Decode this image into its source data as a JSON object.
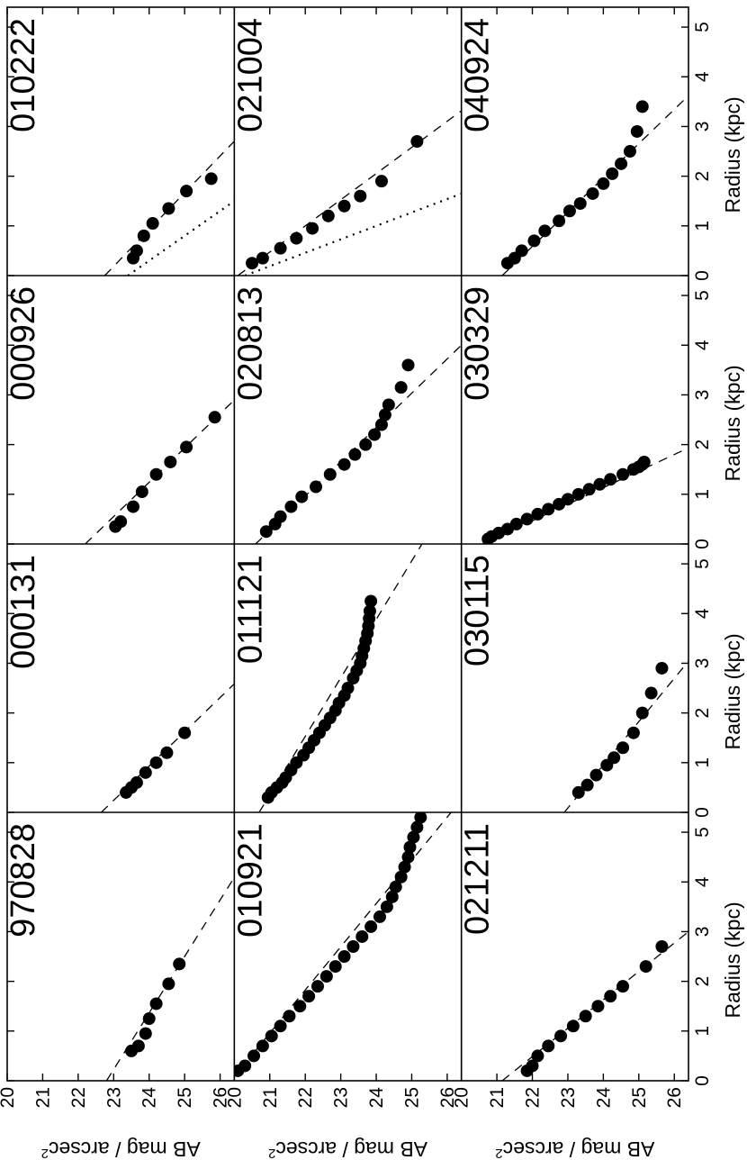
{
  "chart_data": {
    "type": "scatter",
    "rotated_degrees": -90,
    "layout": {
      "rows": 3,
      "cols": 4
    },
    "xlabel": "Radius  (kpc)",
    "ylabel": "AB mag / arcsec",
    "ylabel_superscript": "2",
    "xlim": [
      0,
      5.4
    ],
    "ylim": [
      20,
      26.4
    ],
    "x_ticks": [
      0,
      1,
      2,
      3,
      4,
      5
    ],
    "x_ticklabels": [
      "0",
      "1",
      "2",
      "3",
      "4",
      "5"
    ],
    "y_ticks": [
      20,
      21,
      22,
      23,
      24,
      25,
      26
    ],
    "y_ticklabels": [
      "20",
      "21",
      "22",
      "23",
      "24",
      "25",
      "26"
    ],
    "panels": [
      {
        "id": "970828",
        "row": 0,
        "col": 0,
        "points": [
          [
            0.6,
            23.5
          ],
          [
            0.7,
            23.7
          ],
          [
            0.95,
            23.9
          ],
          [
            1.25,
            24.0
          ],
          [
            1.55,
            24.2
          ],
          [
            1.95,
            24.55
          ],
          [
            2.35,
            24.85
          ]
        ],
        "fit": [
          22.8,
          0.88
        ]
      },
      {
        "id": "000131",
        "row": 0,
        "col": 1,
        "points": [
          [
            0.4,
            23.35
          ],
          [
            0.5,
            23.5
          ],
          [
            0.6,
            23.65
          ],
          [
            0.8,
            23.9
          ],
          [
            1.0,
            24.2
          ],
          [
            1.2,
            24.5
          ],
          [
            1.6,
            25.0
          ]
        ],
        "fit": [
          22.65,
          1.45
        ]
      },
      {
        "id": "000926",
        "row": 0,
        "col": 2,
        "points": [
          [
            0.35,
            23.05
          ],
          [
            0.45,
            23.2
          ],
          [
            0.75,
            23.55
          ],
          [
            1.05,
            23.8
          ],
          [
            1.4,
            24.2
          ],
          [
            1.65,
            24.6
          ],
          [
            1.95,
            25.05
          ],
          [
            2.55,
            25.85
          ]
        ],
        "fit": [
          22.2,
          1.45
        ]
      },
      {
        "id": "010222",
        "row": 0,
        "col": 3,
        "points": [
          [
            0.35,
            23.55
          ],
          [
            0.5,
            23.65
          ],
          [
            0.8,
            23.85
          ],
          [
            1.05,
            24.1
          ],
          [
            1.35,
            24.55
          ],
          [
            1.7,
            25.05
          ],
          [
            1.95,
            25.75
          ]
        ],
        "fit": [
          22.75,
          1.35
        ],
        "dotted": [
          23.4,
          2.0
        ]
      },
      {
        "id": "010921",
        "row": 1,
        "col": 0,
        "points": [
          [
            0.2,
            20.1
          ],
          [
            0.3,
            20.3
          ],
          [
            0.5,
            20.55
          ],
          [
            0.7,
            20.8
          ],
          [
            0.9,
            21.05
          ],
          [
            1.1,
            21.3
          ],
          [
            1.3,
            21.55
          ],
          [
            1.5,
            21.85
          ],
          [
            1.7,
            22.1
          ],
          [
            1.9,
            22.35
          ],
          [
            2.1,
            22.6
          ],
          [
            2.3,
            22.85
          ],
          [
            2.5,
            23.1
          ],
          [
            2.7,
            23.35
          ],
          [
            2.9,
            23.6
          ],
          [
            3.1,
            23.85
          ],
          [
            3.3,
            24.1
          ],
          [
            3.5,
            24.3
          ],
          [
            3.7,
            24.45
          ],
          [
            3.9,
            24.55
          ],
          [
            4.1,
            24.7
          ],
          [
            4.3,
            24.8
          ],
          [
            4.5,
            24.9
          ],
          [
            4.7,
            24.95
          ],
          [
            4.9,
            25.05
          ],
          [
            5.1,
            25.15
          ],
          [
            5.3,
            25.25
          ]
        ],
        "fit": [
          19.9,
          1.15
        ]
      },
      {
        "id": "011121",
        "row": 1,
        "col": 1,
        "points": [
          [
            0.3,
            20.95
          ],
          [
            0.4,
            21.05
          ],
          [
            0.5,
            21.2
          ],
          [
            0.6,
            21.35
          ],
          [
            0.7,
            21.45
          ],
          [
            0.85,
            21.6
          ],
          [
            1.0,
            21.75
          ],
          [
            1.15,
            21.95
          ],
          [
            1.3,
            22.1
          ],
          [
            1.45,
            22.25
          ],
          [
            1.6,
            22.4
          ],
          [
            1.75,
            22.55
          ],
          [
            1.9,
            22.7
          ],
          [
            2.05,
            22.85
          ],
          [
            2.2,
            22.95
          ],
          [
            2.35,
            23.1
          ],
          [
            2.5,
            23.2
          ],
          [
            2.7,
            23.35
          ],
          [
            2.85,
            23.45
          ],
          [
            3.0,
            23.55
          ],
          [
            3.15,
            23.6
          ],
          [
            3.3,
            23.65
          ],
          [
            3.45,
            23.7
          ],
          [
            3.6,
            23.75
          ],
          [
            3.75,
            23.78
          ],
          [
            3.9,
            23.8
          ],
          [
            4.05,
            23.82
          ],
          [
            4.25,
            23.85
          ]
        ],
        "fit": [
          20.7,
          0.85
        ]
      },
      {
        "id": "020813",
        "row": 1,
        "col": 2,
        "points": [
          [
            0.25,
            20.9
          ],
          [
            0.4,
            21.15
          ],
          [
            0.55,
            21.3
          ],
          [
            0.75,
            21.6
          ],
          [
            0.95,
            21.9
          ],
          [
            1.15,
            22.3
          ],
          [
            1.4,
            22.7
          ],
          [
            1.6,
            23.1
          ],
          [
            1.8,
            23.4
          ],
          [
            2.0,
            23.7
          ],
          [
            2.2,
            23.95
          ],
          [
            2.4,
            24.15
          ],
          [
            2.6,
            24.25
          ],
          [
            2.8,
            24.35
          ],
          [
            3.15,
            24.7
          ],
          [
            3.6,
            24.9
          ]
        ],
        "fit": [
          20.6,
          1.45
        ]
      },
      {
        "id": "021004",
        "row": 1,
        "col": 3,
        "points": [
          [
            0.25,
            20.5
          ],
          [
            0.35,
            20.8
          ],
          [
            0.55,
            21.3
          ],
          [
            0.75,
            21.75
          ],
          [
            0.95,
            22.2
          ],
          [
            1.2,
            22.65
          ],
          [
            1.4,
            23.1
          ],
          [
            1.6,
            23.55
          ],
          [
            1.9,
            24.15
          ],
          [
            2.7,
            25.15
          ]
        ],
        "fit": [
          20.1,
          1.9
        ],
        "dotted": [
          20.3,
          3.7
        ]
      },
      {
        "id": "021211",
        "row": 2,
        "col": 0,
        "points": [
          [
            0.2,
            21.85
          ],
          [
            0.3,
            22.0
          ],
          [
            0.5,
            22.15
          ],
          [
            0.7,
            22.45
          ],
          [
            0.9,
            22.8
          ],
          [
            1.1,
            23.15
          ],
          [
            1.3,
            23.5
          ],
          [
            1.5,
            23.85
          ],
          [
            1.7,
            24.2
          ],
          [
            1.9,
            24.55
          ],
          [
            2.3,
            25.2
          ],
          [
            2.7,
            25.65
          ]
        ],
        "fit": [
          21.15,
          1.75
        ]
      },
      {
        "id": "030115",
        "row": 2,
        "col": 1,
        "points": [
          [
            0.4,
            23.3
          ],
          [
            0.55,
            23.55
          ],
          [
            0.75,
            23.8
          ],
          [
            0.95,
            24.1
          ],
          [
            1.1,
            24.3
          ],
          [
            1.3,
            24.55
          ],
          [
            1.6,
            24.85
          ],
          [
            2.0,
            25.1
          ],
          [
            2.4,
            25.35
          ],
          [
            2.9,
            25.65
          ]
        ],
        "fit": [
          22.9,
          1.15
        ]
      },
      {
        "id": "030329",
        "row": 2,
        "col": 2,
        "points": [
          [
            0.1,
            20.75
          ],
          [
            0.15,
            20.85
          ],
          [
            0.22,
            21.05
          ],
          [
            0.3,
            21.3
          ],
          [
            0.4,
            21.55
          ],
          [
            0.5,
            21.85
          ],
          [
            0.6,
            22.15
          ],
          [
            0.7,
            22.45
          ],
          [
            0.8,
            22.75
          ],
          [
            0.9,
            23.0
          ],
          [
            1.0,
            23.3
          ],
          [
            1.1,
            23.6
          ],
          [
            1.2,
            23.9
          ],
          [
            1.3,
            24.2
          ],
          [
            1.4,
            24.55
          ],
          [
            1.5,
            24.85
          ],
          [
            1.55,
            25.0
          ],
          [
            1.6,
            25.1
          ],
          [
            1.65,
            25.15
          ]
        ],
        "fit": [
          20.6,
          3.0
        ]
      },
      {
        "id": "040924",
        "row": 2,
        "col": 3,
        "points": [
          [
            0.25,
            21.3
          ],
          [
            0.35,
            21.5
          ],
          [
            0.5,
            21.7
          ],
          [
            0.7,
            22.05
          ],
          [
            0.9,
            22.35
          ],
          [
            1.1,
            22.75
          ],
          [
            1.3,
            23.05
          ],
          [
            1.45,
            23.35
          ],
          [
            1.65,
            23.7
          ],
          [
            1.85,
            24.0
          ],
          [
            2.05,
            24.25
          ],
          [
            2.25,
            24.5
          ],
          [
            2.5,
            24.75
          ],
          [
            2.9,
            24.95
          ],
          [
            3.4,
            25.1
          ]
        ],
        "fit": [
          21.15,
          1.45
        ]
      }
    ]
  }
}
